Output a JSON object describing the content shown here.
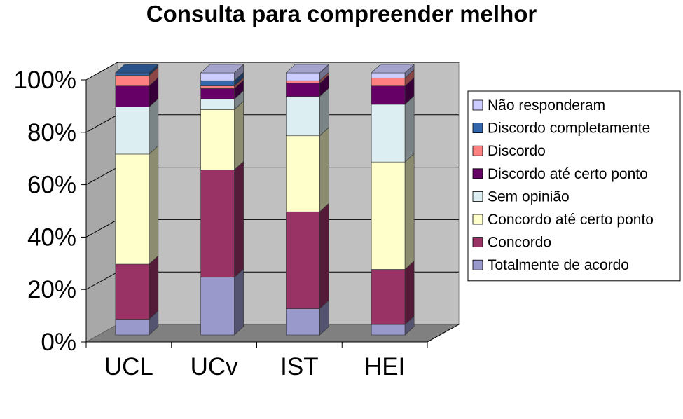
{
  "chart_data": {
    "type": "bar",
    "stacked": true,
    "three_d": true,
    "title": "Consulta para compreender melhor",
    "categories": [
      "UCL",
      "UCv",
      "IST",
      "HEI"
    ],
    "ylim": [
      0,
      100
    ],
    "yticks": [
      "0%",
      "20%",
      "40%",
      "60%",
      "80%",
      "100%"
    ],
    "grid": true,
    "legend_position": "right",
    "series": [
      {
        "name": "Totalmente de acordo",
        "color": "#9999cc",
        "values": [
          6,
          22,
          10,
          4
        ]
      },
      {
        "name": "Concordo",
        "color": "#993366",
        "values": [
          21,
          41,
          37,
          21
        ]
      },
      {
        "name": "Concordo até certo ponto",
        "color": "#ffffcc",
        "values": [
          42,
          23,
          29,
          41
        ]
      },
      {
        "name": "Sem opinião",
        "color": "#ddeef2",
        "values": [
          18,
          4,
          15,
          22
        ]
      },
      {
        "name": "Discordo até certo ponto",
        "color": "#660066",
        "values": [
          8,
          4,
          5,
          7
        ]
      },
      {
        "name": "Discordo",
        "color": "#ff8080",
        "values": [
          4,
          1,
          1,
          3
        ]
      },
      {
        "name": "Discordo completamente",
        "color": "#3366aa",
        "values": [
          1,
          2,
          0,
          0
        ]
      },
      {
        "name": "Não responderam",
        "color": "#ccccff",
        "values": [
          0,
          3,
          3,
          2
        ]
      }
    ]
  }
}
